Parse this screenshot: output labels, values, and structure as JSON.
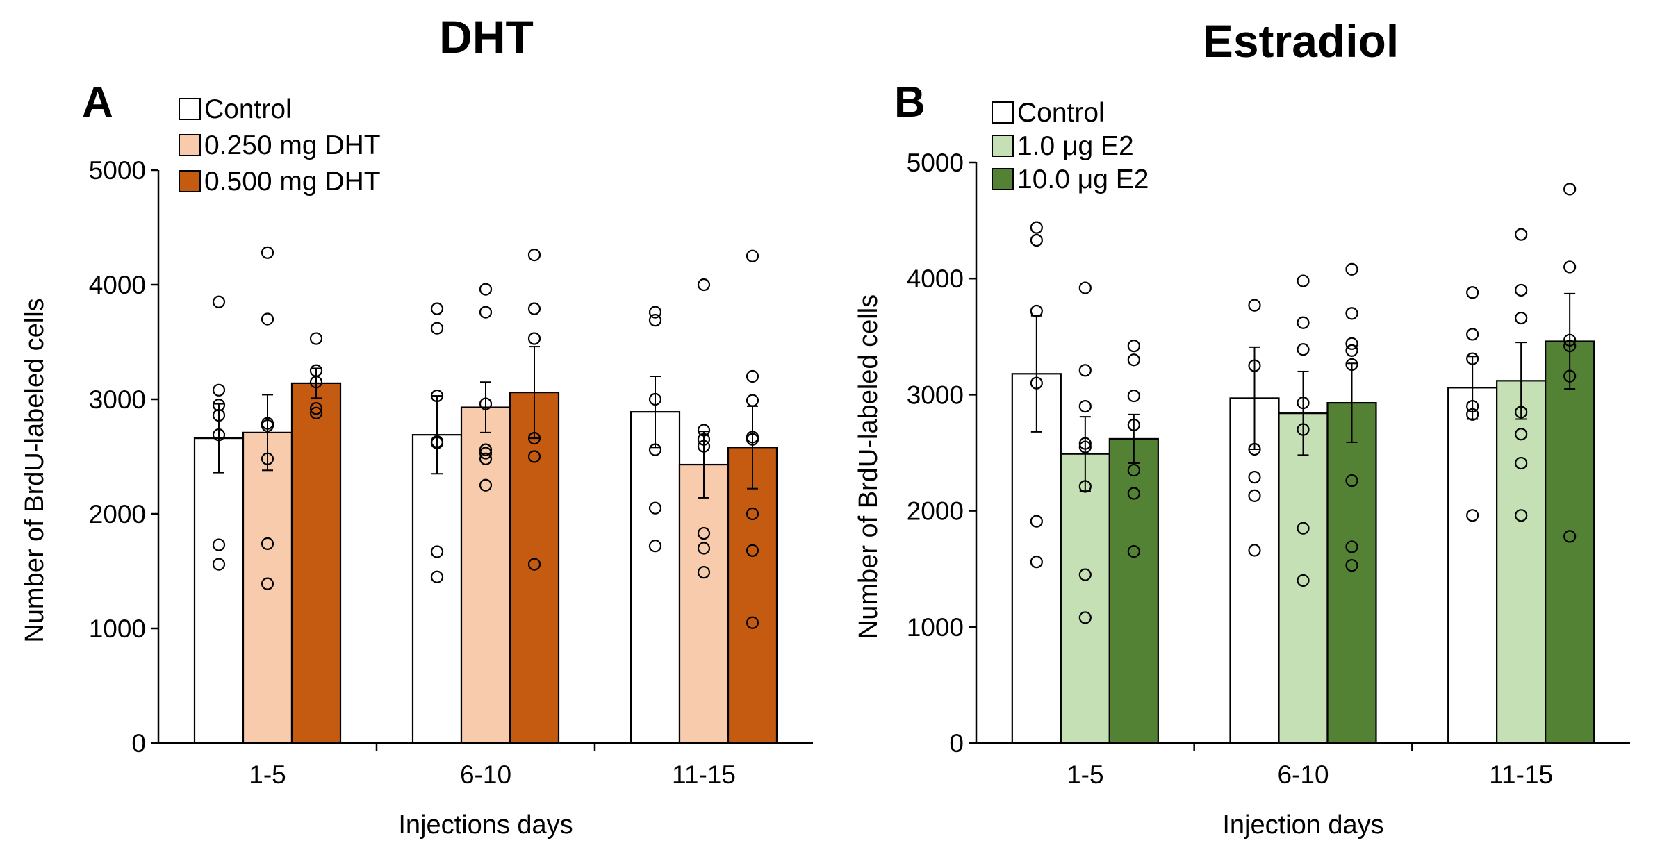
{
  "chart_data": [
    {
      "type": "bar",
      "panel_label": "A",
      "title": "DHT",
      "xlabel": "Injections days",
      "ylabel": "Number of BrdU-labeled cells",
      "ylim": [
        0,
        5000
      ],
      "yticks": [
        "0",
        "1000",
        "2000",
        "3000",
        "4000",
        "5000"
      ],
      "categories": [
        "1-5",
        "6-10",
        "11-15"
      ],
      "legend_position": "top-left",
      "series": [
        {
          "name": "Control",
          "color": "#ffffff",
          "values": [
            2660,
            2690,
            2890
          ],
          "errors": [
            300,
            340,
            310
          ],
          "points": [
            [
              3850,
              3080,
              2950,
              2860,
              2690,
              1730,
              1560
            ],
            [
              3790,
              3620,
              3030,
              2630,
              2620,
              1670,
              1450
            ],
            [
              3760,
              3690,
              3000,
              2560,
              2050,
              1720
            ]
          ]
        },
        {
          "name": "0.250 mg DHT",
          "color": "#f8cbad",
          "values": [
            2710,
            2930,
            2430
          ],
          "errors": [
            330,
            220,
            290
          ],
          "points": [
            [
              4280,
              3700,
              2790,
              2770,
              2480,
              1740,
              1390
            ],
            [
              3960,
              3760,
              2960,
              2560,
              2530,
              2480,
              2250
            ],
            [
              4000,
              2730,
              2650,
              2590,
              1830,
              1700,
              1490
            ]
          ]
        },
        {
          "name": "0.500 mg DHT",
          "color": "#c55a11",
          "values": [
            3140,
            3060,
            2580
          ],
          "errors": [
            130,
            400,
            360
          ],
          "points": [
            [
              3530,
              3250,
              3150,
              2920,
              2880
            ],
            [
              4260,
              3790,
              3530,
              2660,
              2500,
              1560
            ],
            [
              4250,
              3200,
              2990,
              2670,
              2650,
              2000,
              1680,
              1050
            ]
          ]
        }
      ]
    },
    {
      "type": "bar",
      "panel_label": "B",
      "title": "Estradiol",
      "xlabel": "Injection days",
      "ylabel": "Number of BrdU-labeled cells",
      "ylim": [
        0,
        5000
      ],
      "yticks": [
        "0",
        "1000",
        "2000",
        "3000",
        "4000",
        "5000"
      ],
      "categories": [
        "1-5",
        "6-10",
        "11-15"
      ],
      "legend_position": "top-left",
      "series": [
        {
          "name": "Control",
          "color": "#ffffff",
          "values": [
            3180,
            2970,
            3060
          ],
          "errors": [
            500,
            440,
            270
          ],
          "points": [
            [
              4440,
              4330,
              3720,
              3100,
              1910,
              1560
            ],
            [
              3770,
              3250,
              2530,
              2290,
              2130,
              1660
            ],
            [
              3880,
              3520,
              3310,
              2900,
              2830,
              1960
            ]
          ]
        },
        {
          "name": "1.0 μg E2",
          "color": "#c5e0b4",
          "values": [
            2490,
            2840,
            3120
          ],
          "errors": [
            320,
            360,
            330
          ],
          "points": [
            [
              3920,
              3210,
              2900,
              2580,
              2550,
              2210,
              1450,
              1080
            ],
            [
              3980,
              3620,
              3390,
              2930,
              2700,
              1850,
              1400
            ],
            [
              4380,
              3900,
              3660,
              2850,
              2660,
              2410,
              1960
            ]
          ]
        },
        {
          "name": "10.0 μg E2",
          "color": "#548235",
          "values": [
            2620,
            2930,
            3460
          ],
          "errors": [
            210,
            340,
            410
          ],
          "points": [
            [
              3420,
              3300,
              2990,
              2740,
              2350,
              2150,
              1650
            ],
            [
              4080,
              3700,
              3440,
              3380,
              3260,
              2260,
              1690,
              1530
            ],
            [
              4770,
              4100,
              3470,
              3420,
              3160,
              1780
            ]
          ]
        }
      ]
    }
  ]
}
